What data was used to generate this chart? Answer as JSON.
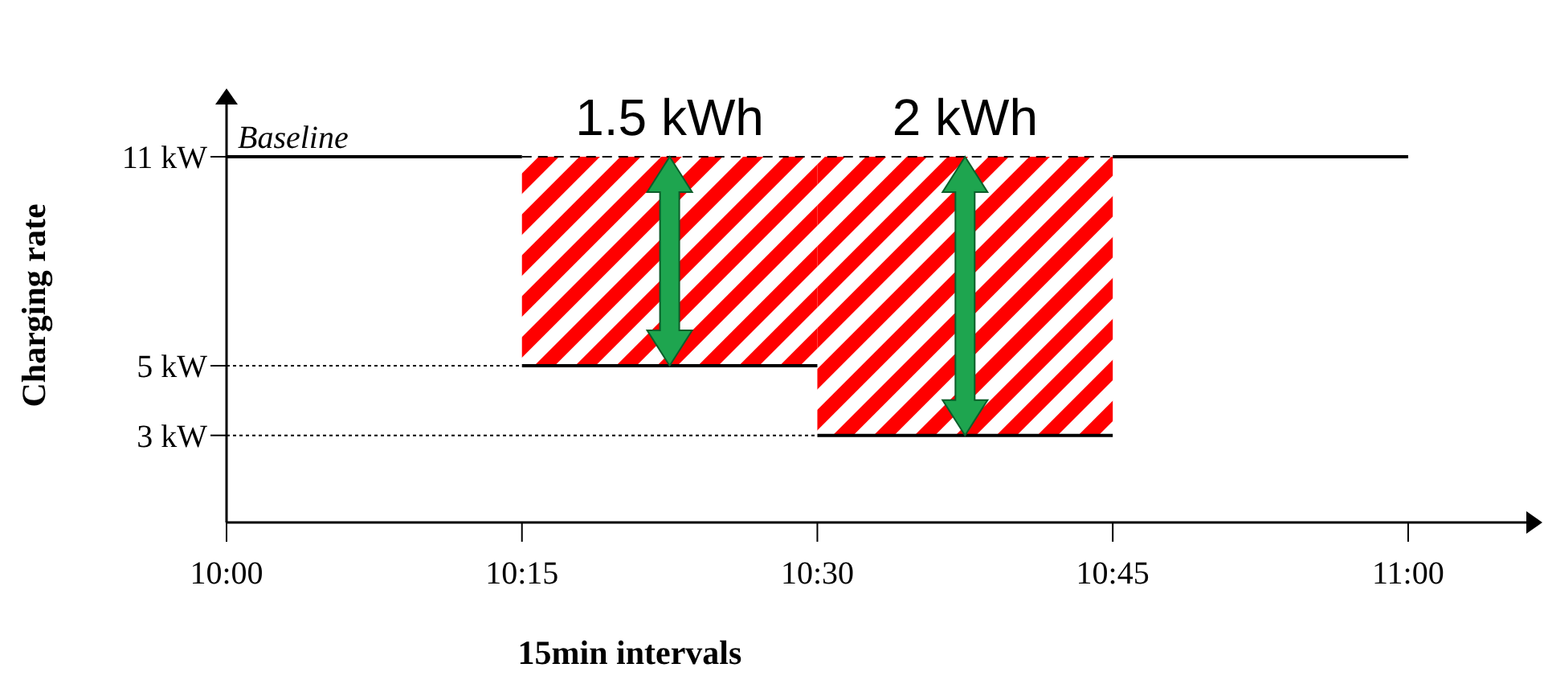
{
  "chart_data": {
    "type": "line",
    "xlabel": "15min intervals",
    "ylabel": "Charging rate",
    "xlim": [
      10,
      11.1
    ],
    "ylim": [
      0.5,
      12.5
    ],
    "xticks": [
      {
        "value": 10,
        "label": "10:00"
      },
      {
        "value": 10.25,
        "label": "10:15"
      },
      {
        "value": 10.5,
        "label": "10:30"
      },
      {
        "value": 10.75,
        "label": "10:45"
      },
      {
        "value": 11,
        "label": "11:00"
      }
    ],
    "yticks": [
      {
        "value": 3,
        "label": "3 kW"
      },
      {
        "value": 5,
        "label": "5 kW"
      },
      {
        "value": 11,
        "label": "11 kW"
      }
    ],
    "series": [
      {
        "type": "bar",
        "x": [
          10.375,
          10.625
        ],
        "values": [
          6,
          8
        ],
        "base": [
          5,
          3
        ],
        "color": "#ff0000"
      },
      {
        "x": [
          10,
          10.25
        ],
        "values": [
          11,
          11
        ],
        "color": "#000000",
        "line_style": "solid"
      },
      {
        "x": [
          10.25,
          10.75
        ],
        "values": [
          11,
          11
        ],
        "color": "#000000",
        "line_style": "dashed"
      },
      {
        "x": [
          10.75,
          11
        ],
        "values": [
          11,
          11
        ],
        "color": "#000000",
        "line_style": "solid"
      },
      {
        "x": [
          10.25,
          10.5
        ],
        "values": [
          5,
          5
        ],
        "color": "#000000",
        "line_style": "solid"
      },
      {
        "x": [
          10.5,
          10.75
        ],
        "values": [
          3,
          3
        ],
        "color": "#000000",
        "line_style": "solid"
      },
      {
        "x": [
          10,
          10.25
        ],
        "values": [
          5,
          5
        ],
        "color": "#000000",
        "line_style": "dotted"
      },
      {
        "x": [
          10,
          10.5
        ],
        "values": [
          3,
          3
        ],
        "color": "#000000",
        "line_style": "dotted"
      }
    ],
    "annotations": [
      "Baseline",
      "1.5 kWh",
      "2 kWh"
    ]
  }
}
